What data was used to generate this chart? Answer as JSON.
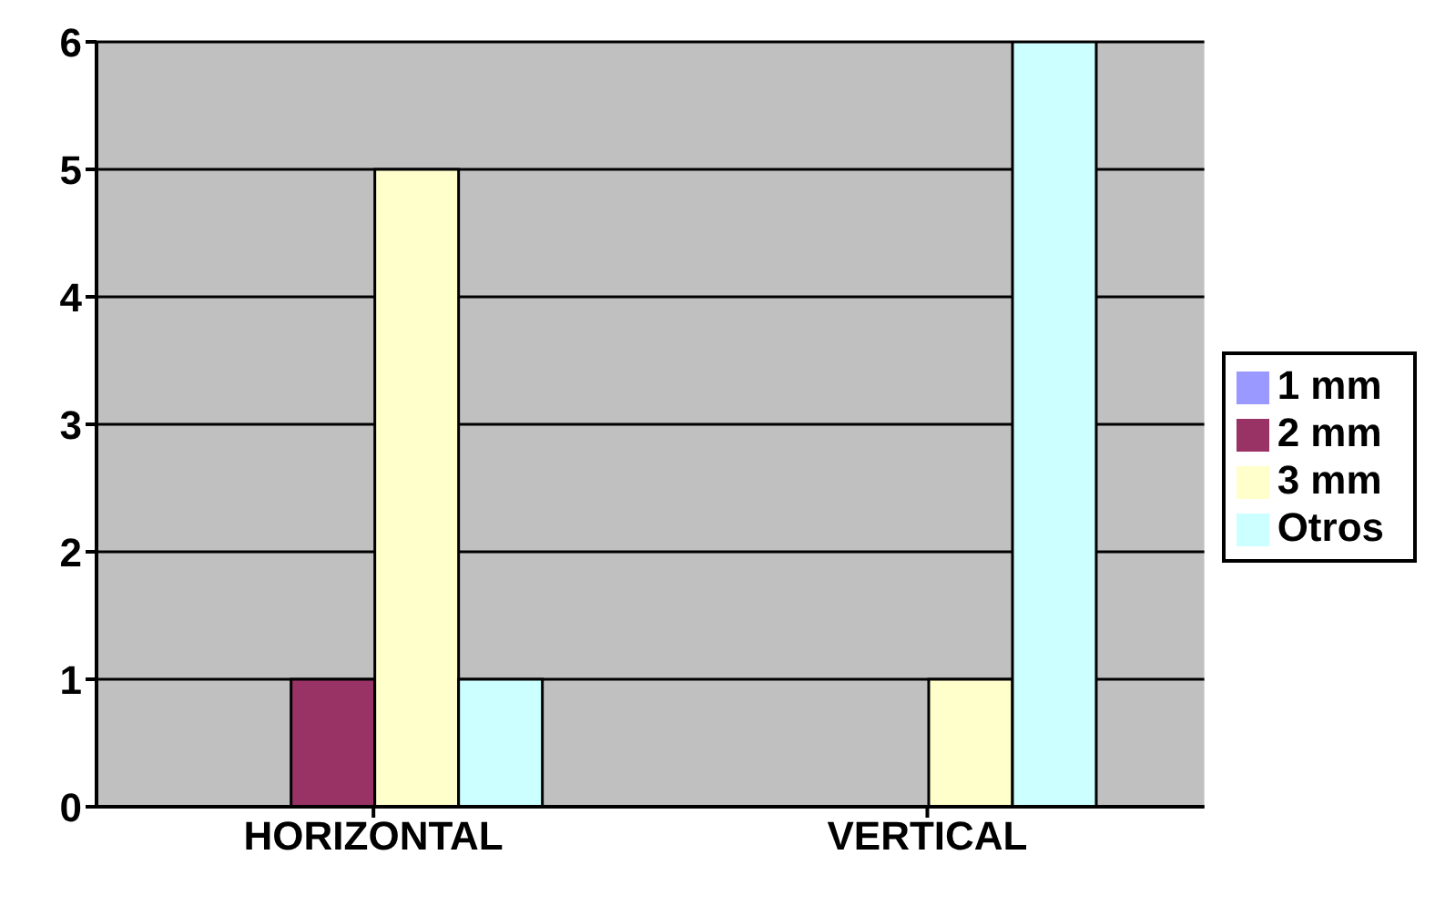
{
  "chart_data": {
    "type": "bar",
    "categories": [
      "HORIZONTAL",
      "VERTICAL"
    ],
    "series": [
      {
        "name": "1 mm",
        "color": "#9999ff",
        "values": [
          0,
          0
        ]
      },
      {
        "name": "2 mm",
        "color": "#993366",
        "values": [
          1,
          0
        ]
      },
      {
        "name": "3 mm",
        "color": "#ffffcc",
        "values": [
          5,
          1
        ]
      },
      {
        "name": "Otros",
        "color": "#ccffff",
        "values": [
          1,
          6
        ]
      }
    ],
    "ylim": [
      0,
      6
    ],
    "yticks": [
      0,
      1,
      2,
      3,
      4,
      5,
      6
    ],
    "grid": "y",
    "legend": "right"
  }
}
